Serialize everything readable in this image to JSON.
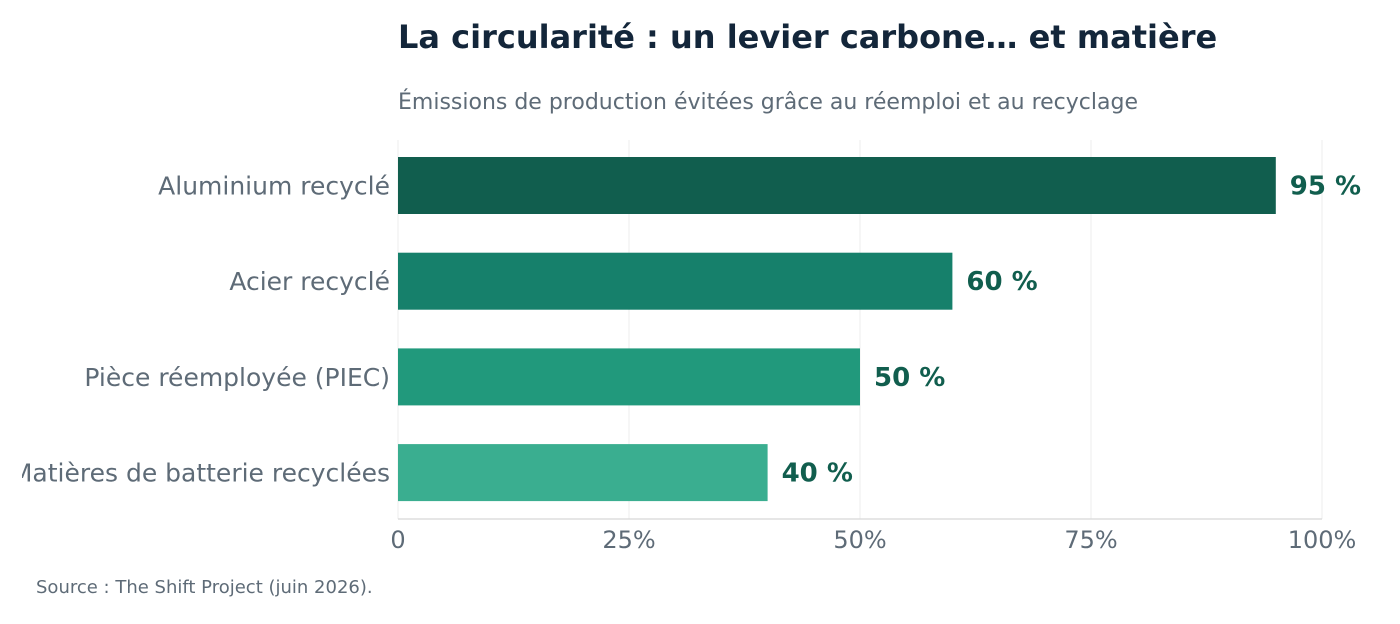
{
  "chart_data": {
    "type": "bar",
    "orientation": "horizontal",
    "title": "La circularité : un levier carbone… et matière",
    "subtitle": "Émissions de production évitées grâce au réemploi et au recyclage",
    "categories": [
      "Aluminium recyclé",
      "Acier recyclé",
      "Pièce réemployée (PIEC)",
      "Matières de batterie recyclées"
    ],
    "values": [
      95,
      60,
      50,
      40
    ],
    "value_labels": [
      "95 %",
      "60 %",
      "50 %",
      "40 %"
    ],
    "bar_colors": [
      "#115e4e",
      "#16806b",
      "#21997c",
      "#3aae90"
    ],
    "label_color": "#115e4e",
    "xlim": [
      0,
      100
    ],
    "xticks": [
      0,
      25,
      50,
      75,
      100
    ],
    "xtick_labels": [
      "0",
      "25%",
      "50%",
      "75%",
      "100%"
    ],
    "grid": true,
    "xlabel": "",
    "ylabel": ""
  },
  "source": "Source : The Shift Project (juin 2026)."
}
